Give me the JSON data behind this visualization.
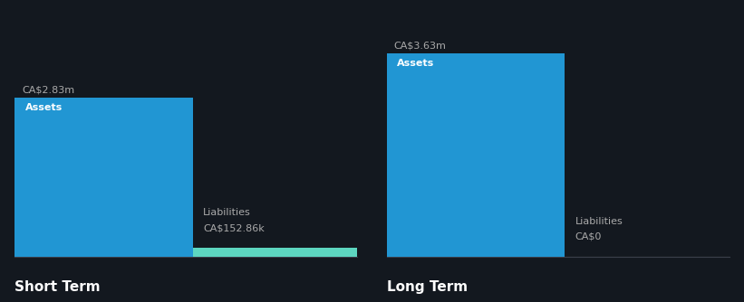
{
  "background_color": "#13181f",
  "short_term": {
    "assets_value": 2.83,
    "liabilities_value": 0.15286,
    "assets_label": "CA$2.83m",
    "liabilities_label": "CA$152.86k",
    "assets_color": "#2196d3",
    "liabilities_color": "#5dd6c0",
    "section_title": "Short Term"
  },
  "long_term": {
    "assets_value": 3.63,
    "liabilities_value": 0.001,
    "assets_label": "CA$3.63m",
    "liabilities_label": "CA$0",
    "assets_color": "#2196d3",
    "liabilities_color": "#5dd6c0",
    "section_title": "Long Term"
  },
  "max_value": 4.2,
  "text_color": "#ffffff",
  "label_color": "#aaaaaa",
  "font_family": "DejaVu Sans"
}
